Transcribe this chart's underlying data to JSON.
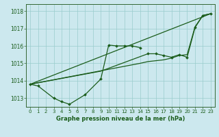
{
  "title": "Graphe pression niveau de la mer (hPa)",
  "bg_color": "#cce8ee",
  "grid_color": "#99cccc",
  "line_color": "#1a5c1a",
  "xlim": [
    -0.5,
    23.5
  ],
  "ylim": [
    1012.5,
    1018.4
  ],
  "yticks": [
    1013,
    1014,
    1015,
    1016,
    1017,
    1018
  ],
  "xticks": [
    0,
    1,
    2,
    3,
    4,
    5,
    6,
    7,
    8,
    9,
    10,
    11,
    12,
    13,
    14,
    15,
    16,
    17,
    18,
    19,
    20,
    21,
    22,
    23
  ],
  "line1_x": [
    0,
    1,
    3,
    4,
    5,
    7,
    9,
    10,
    11,
    12,
    13,
    14
  ],
  "line1_y": [
    1013.8,
    1013.7,
    1013.0,
    1012.8,
    1012.65,
    1013.2,
    1014.1,
    1016.05,
    1016.0,
    1016.0,
    1016.0,
    1015.9
  ],
  "line2_x": [
    0,
    9,
    15,
    16,
    17,
    18,
    19,
    20,
    21,
    22,
    23
  ],
  "line2_y": [
    1013.8,
    1014.55,
    1015.55,
    1015.55,
    1015.45,
    1015.35,
    1015.5,
    1015.35,
    1017.05,
    1017.75,
    1017.85
  ],
  "line3_x": [
    0,
    14,
    15,
    16,
    17,
    18,
    19,
    20,
    21,
    22,
    23
  ],
  "line3_y": [
    1013.8,
    1015.0,
    1015.1,
    1015.15,
    1015.2,
    1015.3,
    1015.45,
    1015.5,
    1017.1,
    1017.75,
    1017.85
  ],
  "line4_x": [
    0,
    23
  ],
  "line4_y": [
    1013.8,
    1017.85
  ],
  "markers_x": [
    15,
    16,
    17,
    18,
    19,
    20,
    21,
    22,
    23
  ],
  "markers_y": [
    1015.55,
    1015.55,
    1015.45,
    1015.35,
    1015.5,
    1015.35,
    1017.05,
    1017.75,
    1017.85
  ]
}
